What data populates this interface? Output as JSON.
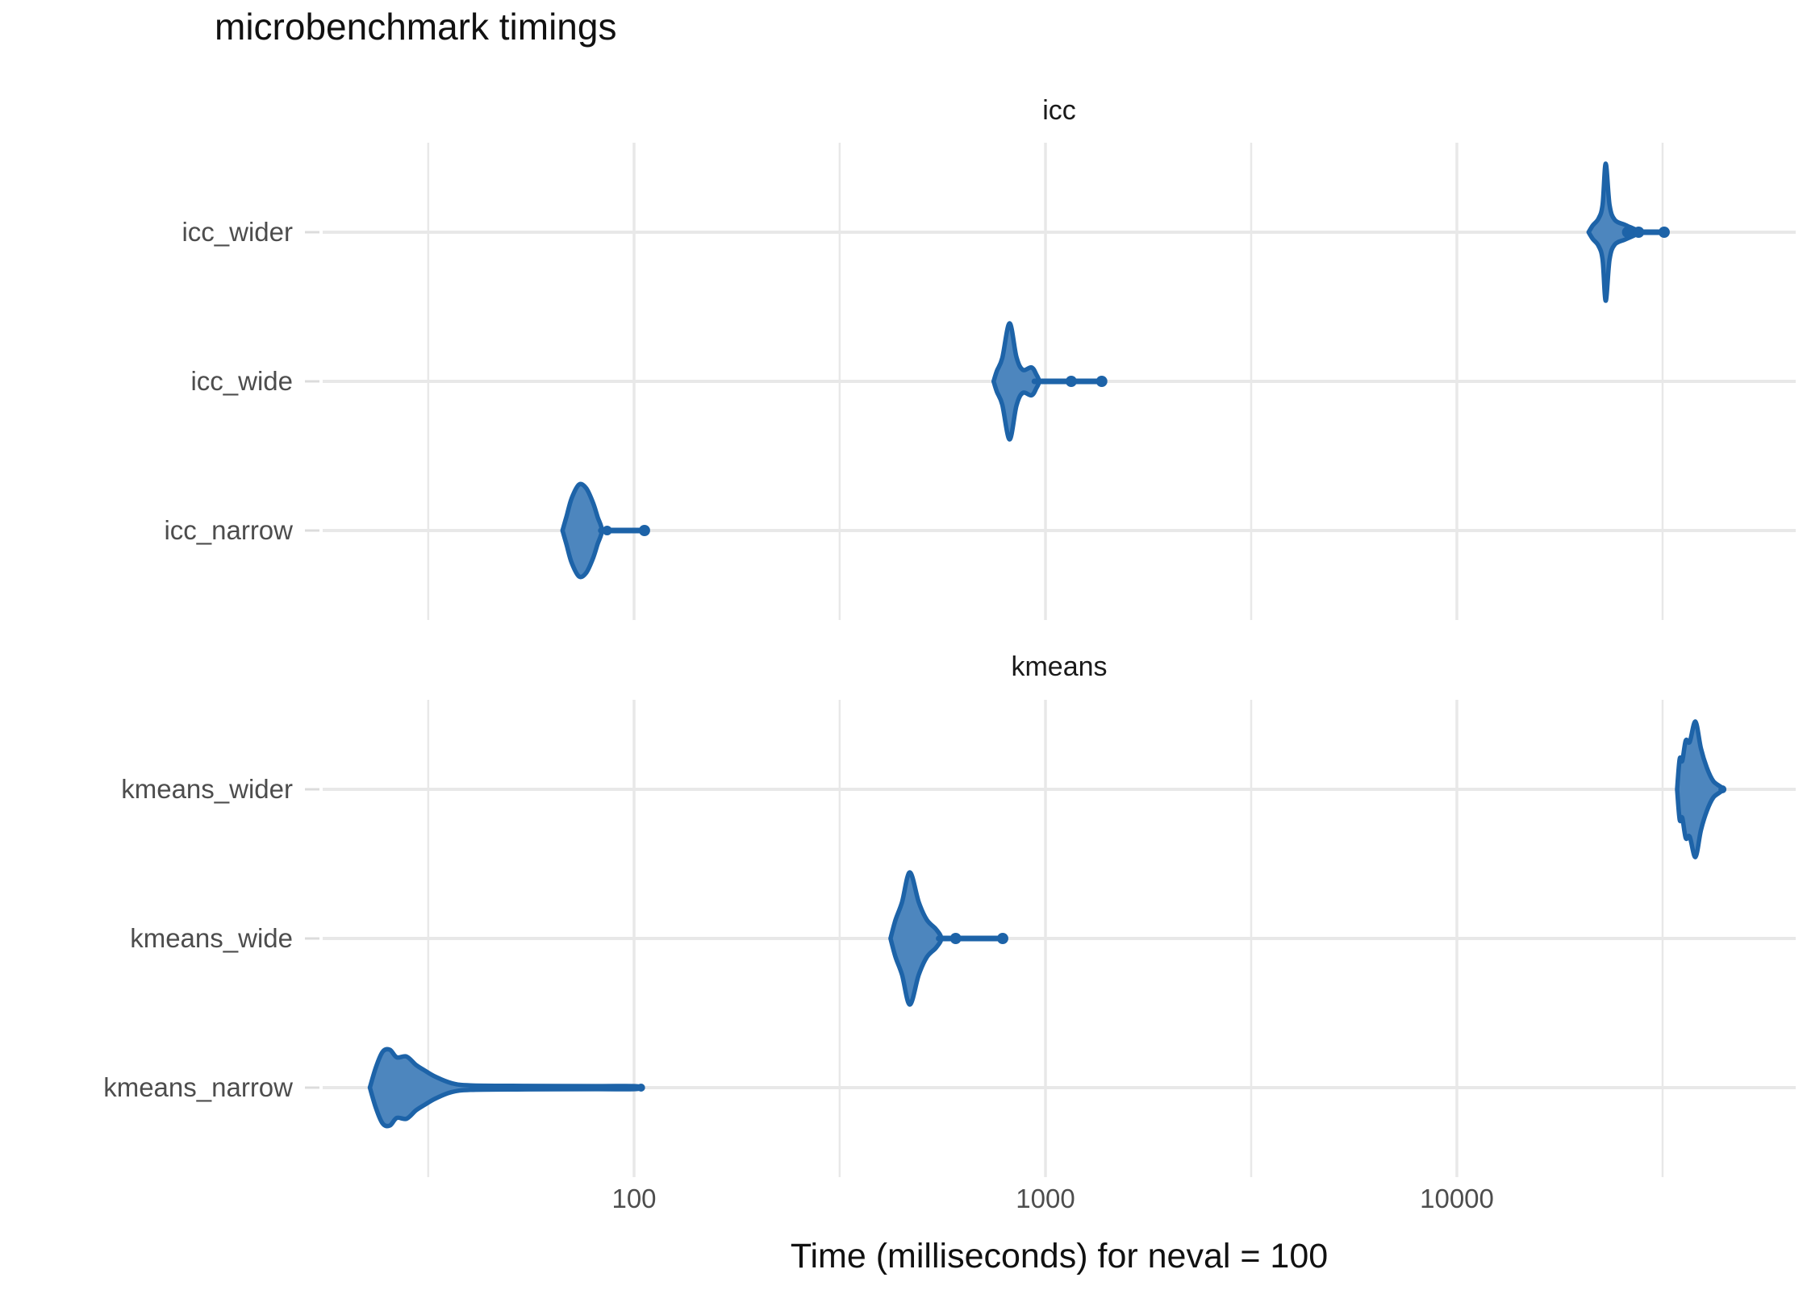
{
  "chart_data": {
    "type": "violin",
    "orientation": "horizontal",
    "title": "microbenchmark timings",
    "xlabel": "Time (milliseconds) for neval = 100",
    "x_scale": "log10",
    "x_tick_labels": [
      "100",
      "1000",
      "10000"
    ],
    "x_ticks_ms": [
      100,
      1000,
      10000
    ],
    "x_minor_ticks_ms": [
      31.6,
      316,
      3162,
      31620
    ],
    "xlim_ms": [
      17.5,
      66000
    ],
    "legend": "none",
    "grid": "white background, light gray major and minor gridlines, no panel border",
    "style": {
      "violin_fill": "#4d86be",
      "violin_stroke": "#1d63a8",
      "grid_color": "#e8e8e8",
      "tick_color": "#dcdcdc",
      "axis_text_color": "#4d4d4d",
      "title_color": "#111111"
    },
    "facets": [
      {
        "label": "icc",
        "rows": [
          {
            "label": "icc_wider",
            "peak_ms": 23000,
            "body_range_ms": [
              20900,
              27600
            ],
            "tail_ms": [
              27000,
              31900
            ],
            "dots": [
              {
                "ms": 26000,
                "r": 7
              },
              {
                "ms": 27650,
                "r": 7
              },
              {
                "ms": 31900,
                "r": 7
              }
            ],
            "max_half_thickness_px": 85,
            "profile": [
              [
                20900,
                0
              ],
              [
                21400,
                0.1
              ],
              [
                22100,
                0.2
              ],
              [
                22600,
                0.4
              ],
              [
                23000,
                1.0
              ],
              [
                23500,
                0.4
              ],
              [
                24200,
                0.18
              ],
              [
                25800,
                0.1
              ],
              [
                27600,
                0
              ]
            ]
          },
          {
            "label": "icc_wide",
            "peak_ms": 820,
            "body_range_ms": [
              748,
              965
            ],
            "tail_ms": [
              940,
              1370
            ],
            "dots": [
              {
                "ms": 1155,
                "r": 7
              },
              {
                "ms": 1370,
                "r": 7
              }
            ],
            "max_half_thickness_px": 72,
            "profile": [
              [
                748,
                0
              ],
              [
                762,
                0.18
              ],
              [
                785,
                0.4
              ],
              [
                818,
                1.0
              ],
              [
                850,
                0.42
              ],
              [
                880,
                0.2
              ],
              [
                925,
                0.24
              ],
              [
                950,
                0.12
              ],
              [
                965,
                0
              ]
            ]
          },
          {
            "label": "icc_narrow",
            "peak_ms": 74,
            "body_range_ms": [
              67,
              83.5
            ],
            "tail_ms": [
              83,
              106
            ],
            "dots": [
              {
                "ms": 86,
                "r": 6
              },
              {
                "ms": 106,
                "r": 7
              }
            ],
            "max_half_thickness_px": 57,
            "profile": [
              [
                67,
                0
              ],
              [
                68.5,
                0.3
              ],
              [
                70.5,
                0.7
              ],
              [
                73.5,
                1.0
              ],
              [
                76.5,
                0.92
              ],
              [
                79.5,
                0.6
              ],
              [
                81.5,
                0.3
              ],
              [
                83.5,
                0
              ]
            ]
          }
        ]
      },
      {
        "label": "kmeans",
        "rows": [
          {
            "label": "kmeans_wider",
            "peak_ms": 38000,
            "body_range_ms": [
              34300,
              44200
            ],
            "tail_ms": null,
            "dots": [
              {
                "ms": 44200,
                "r": 5
              }
            ],
            "max_half_thickness_px": 84,
            "profile": [
              [
                34300,
                0
              ],
              [
                34800,
                0.45
              ],
              [
                35300,
                0.42
              ],
              [
                36000,
                0.72
              ],
              [
                36800,
                0.7
              ],
              [
                38000,
                1.0
              ],
              [
                39200,
                0.6
              ],
              [
                40500,
                0.32
              ],
              [
                42000,
                0.12
              ],
              [
                44200,
                0
              ]
            ]
          },
          {
            "label": "kmeans_wide",
            "peak_ms": 468,
            "body_range_ms": [
              420,
              558
            ],
            "tail_ms": [
              550,
              787
            ],
            "dots": [
              {
                "ms": 605,
                "r": 7
              },
              {
                "ms": 787,
                "r": 7
              }
            ],
            "max_half_thickness_px": 82,
            "profile": [
              [
                420,
                0
              ],
              [
                432,
                0.28
              ],
              [
                448,
                0.55
              ],
              [
                468,
                1.0
              ],
              [
                492,
                0.55
              ],
              [
                515,
                0.28
              ],
              [
                542,
                0.14
              ],
              [
                558,
                0
              ]
            ]
          },
          {
            "label": "kmeans_narrow",
            "peak_ms": 26,
            "body_range_ms": [
              22.8,
              104
            ],
            "tail_ms": null,
            "dots": [
              {
                "ms": 104,
                "r": 5
              }
            ],
            "max_half_thickness_px": 47,
            "profile": [
              [
                22.8,
                0
              ],
              [
                23.6,
                0.55
              ],
              [
                24.5,
                0.95
              ],
              [
                25.5,
                1.0
              ],
              [
                26.5,
                0.8
              ],
              [
                28,
                0.82
              ],
              [
                29.5,
                0.6
              ],
              [
                31,
                0.45
              ],
              [
                33,
                0.28
              ],
              [
                36,
                0.12
              ],
              [
                40,
                0.06
              ],
              [
                55,
                0.045
              ],
              [
                80,
                0.04
              ],
              [
                100,
                0.04
              ],
              [
                104,
                0
              ]
            ]
          }
        ]
      }
    ]
  }
}
